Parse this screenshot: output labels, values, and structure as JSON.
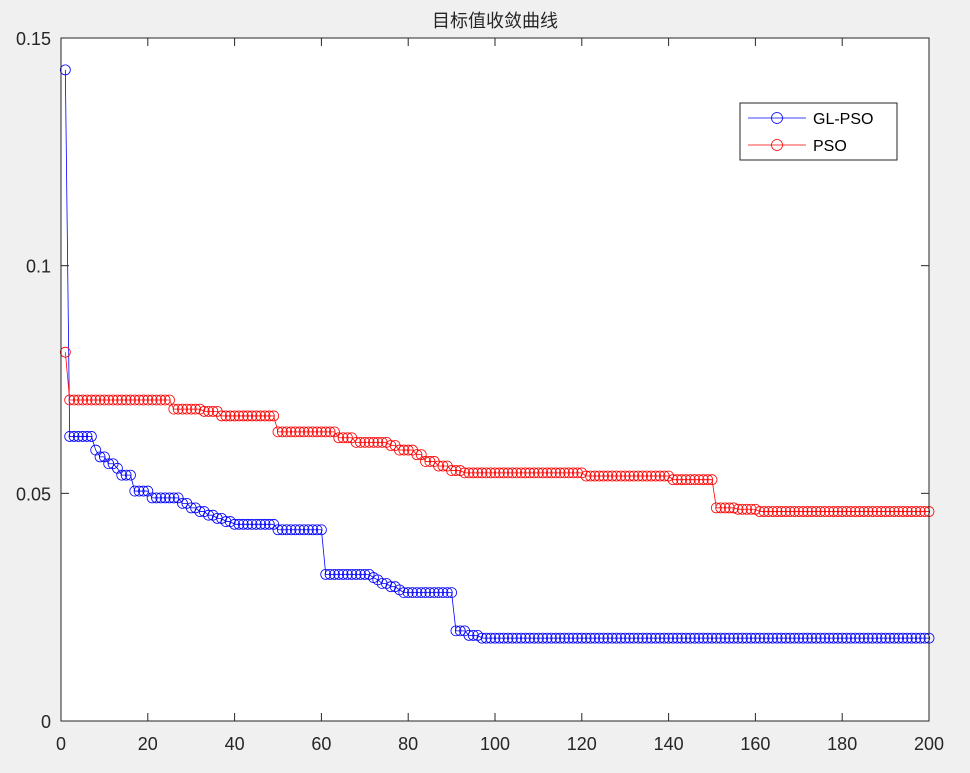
{
  "chart_data": {
    "type": "line",
    "title": "目标值收敛曲线",
    "xlabel": "",
    "ylabel": "",
    "xlim": [
      0,
      200
    ],
    "ylim": [
      0,
      0.15
    ],
    "xticks": [
      0,
      20,
      40,
      60,
      80,
      100,
      120,
      140,
      160,
      180,
      200
    ],
    "xtick_labels": [
      "0",
      "20",
      "40",
      "60",
      "80",
      "100",
      "120",
      "140",
      "160",
      "180",
      "200"
    ],
    "yticks": [
      0,
      0.05,
      0.1,
      0.15
    ],
    "ytick_labels": [
      "0",
      "0.05",
      "0.1",
      "0.15"
    ],
    "grid": false,
    "legend_position": "top-right",
    "marker": "circle",
    "series": [
      {
        "name": "GL-PSO",
        "color": "#0000ff",
        "segments": [
          {
            "from": 1,
            "to": 1,
            "y": 0.143
          },
          {
            "from": 2,
            "to": 7,
            "y": 0.0625
          },
          {
            "from": 8,
            "to": 8,
            "y": 0.0595
          },
          {
            "from": 9,
            "to": 10,
            "y": 0.058
          },
          {
            "from": 11,
            "to": 12,
            "y": 0.0565
          },
          {
            "from": 13,
            "to": 13,
            "y": 0.0555
          },
          {
            "from": 14,
            "to": 16,
            "y": 0.054
          },
          {
            "from": 17,
            "to": 20,
            "y": 0.0505
          },
          {
            "from": 21,
            "to": 27,
            "y": 0.049
          },
          {
            "from": 28,
            "to": 29,
            "y": 0.0478
          },
          {
            "from": 30,
            "to": 31,
            "y": 0.0468
          },
          {
            "from": 32,
            "to": 33,
            "y": 0.046
          },
          {
            "from": 34,
            "to": 35,
            "y": 0.0452
          },
          {
            "from": 36,
            "to": 37,
            "y": 0.0445
          },
          {
            "from": 38,
            "to": 39,
            "y": 0.0438
          },
          {
            "from": 40,
            "to": 49,
            "y": 0.0432
          },
          {
            "from": 50,
            "to": 60,
            "y": 0.042
          },
          {
            "from": 61,
            "to": 71,
            "y": 0.0322
          },
          {
            "from": 72,
            "to": 72,
            "y": 0.0315
          },
          {
            "from": 73,
            "to": 73,
            "y": 0.031
          },
          {
            "from": 74,
            "to": 75,
            "y": 0.0302
          },
          {
            "from": 76,
            "to": 77,
            "y": 0.0295
          },
          {
            "from": 78,
            "to": 78,
            "y": 0.0288
          },
          {
            "from": 79,
            "to": 90,
            "y": 0.0282
          },
          {
            "from": 91,
            "to": 93,
            "y": 0.0198
          },
          {
            "from": 94,
            "to": 96,
            "y": 0.0188
          },
          {
            "from": 97,
            "to": 200,
            "y": 0.0182
          }
        ]
      },
      {
        "name": "PSO",
        "color": "#ff0000",
        "segments": [
          {
            "from": 1,
            "to": 1,
            "y": 0.081
          },
          {
            "from": 2,
            "to": 25,
            "y": 0.0705
          },
          {
            "from": 26,
            "to": 32,
            "y": 0.0685
          },
          {
            "from": 33,
            "to": 36,
            "y": 0.068
          },
          {
            "from": 37,
            "to": 49,
            "y": 0.067
          },
          {
            "from": 50,
            "to": 63,
            "y": 0.0635
          },
          {
            "from": 64,
            "to": 67,
            "y": 0.0622
          },
          {
            "from": 68,
            "to": 75,
            "y": 0.0612
          },
          {
            "from": 76,
            "to": 77,
            "y": 0.0605
          },
          {
            "from": 78,
            "to": 81,
            "y": 0.0595
          },
          {
            "from": 82,
            "to": 83,
            "y": 0.0585
          },
          {
            "from": 84,
            "to": 86,
            "y": 0.057
          },
          {
            "from": 87,
            "to": 89,
            "y": 0.056
          },
          {
            "from": 90,
            "to": 92,
            "y": 0.055
          },
          {
            "from": 93,
            "to": 120,
            "y": 0.0545
          },
          {
            "from": 121,
            "to": 140,
            "y": 0.0538
          },
          {
            "from": 141,
            "to": 150,
            "y": 0.053
          },
          {
            "from": 151,
            "to": 155,
            "y": 0.0468
          },
          {
            "from": 156,
            "to": 160,
            "y": 0.0465
          },
          {
            "from": 161,
            "to": 200,
            "y": 0.046
          }
        ]
      }
    ]
  }
}
